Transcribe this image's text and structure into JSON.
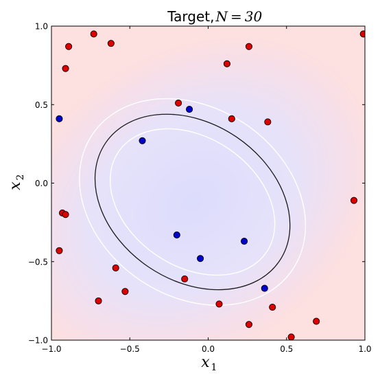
{
  "chart_data": {
    "type": "scatter",
    "title": "Target, ",
    "title_math": "N = 30",
    "xlabel": {
      "var": "x",
      "sub": "1"
    },
    "ylabel": {
      "var": "x",
      "sub": "2"
    },
    "xlim": [
      -1.0,
      1.0
    ],
    "ylim": [
      -1.0,
      1.0
    ],
    "xticks": [
      "−1.0",
      "−0.5",
      "0.0",
      "0.5",
      "1.0"
    ],
    "yticks": [
      "−1.0",
      "−0.5",
      "0.0",
      "0.5",
      "1.0"
    ],
    "tick_values": [
      -1.0,
      -0.5,
      0.0,
      0.5,
      1.0
    ],
    "grid": false,
    "background_colors": {
      "outside": "#fde0e0",
      "inside": "#e2e2fb"
    },
    "boundary_ellipse": {
      "center": [
        -0.1,
        -0.12
      ],
      "semi_axes": [
        0.67,
        0.5
      ],
      "rotation_deg": -34,
      "color": "#1a1a1a"
    },
    "margin_ellipses": [
      {
        "center": [
          -0.1,
          -0.12
        ],
        "semi_axes": [
          0.57,
          0.41
        ],
        "rotation_deg": -34,
        "color": "#ffffff"
      },
      {
        "center": [
          -0.1,
          -0.12
        ],
        "semi_axes": [
          0.77,
          0.6
        ],
        "rotation_deg": -34,
        "color": "#ffffff"
      }
    ],
    "series": [
      {
        "color": "#dd0000",
        "points": [
          [
            -0.73,
            0.95
          ],
          [
            -0.89,
            0.87
          ],
          [
            -0.62,
            0.89
          ],
          [
            -0.91,
            0.73
          ],
          [
            0.12,
            0.76
          ],
          [
            0.26,
            0.87
          ],
          [
            0.99,
            0.95
          ],
          [
            -0.19,
            0.51
          ],
          [
            0.15,
            0.41
          ],
          [
            0.38,
            0.39
          ],
          [
            0.93,
            -0.11
          ],
          [
            -0.93,
            -0.19
          ],
          [
            -0.91,
            -0.2
          ],
          [
            -0.95,
            -0.43
          ],
          [
            -0.59,
            -0.54
          ],
          [
            -0.15,
            -0.61
          ],
          [
            -0.53,
            -0.69
          ],
          [
            -0.7,
            -0.75
          ],
          [
            0.07,
            -0.77
          ],
          [
            0.41,
            -0.79
          ],
          [
            0.26,
            -0.9
          ],
          [
            0.69,
            -0.88
          ],
          [
            0.53,
            -0.98
          ]
        ]
      },
      {
        "color": "#0000cc",
        "points": [
          [
            -0.95,
            0.41
          ],
          [
            -0.12,
            0.47
          ],
          [
            -0.42,
            0.27
          ],
          [
            -0.2,
            -0.33
          ],
          [
            0.23,
            -0.37
          ],
          [
            -0.05,
            -0.48
          ],
          [
            0.36,
            -0.67
          ]
        ]
      }
    ]
  }
}
